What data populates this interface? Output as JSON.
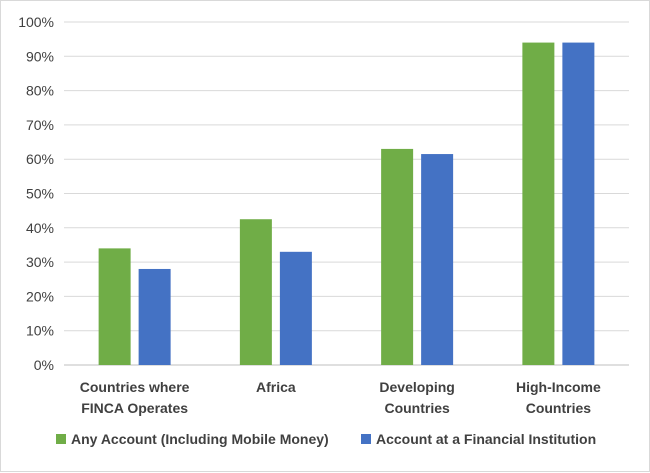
{
  "chart_data": {
    "type": "bar",
    "categories": [
      [
        "Countries where",
        "FINCA Operates"
      ],
      [
        "Africa"
      ],
      [
        "Developing",
        "Countries"
      ],
      [
        "High-Income",
        "Countries"
      ]
    ],
    "series": [
      {
        "name": "Any Account (Including Mobile Money)",
        "color": "#70ad47",
        "values": [
          34,
          42.5,
          63,
          94
        ]
      },
      {
        "name": "Account at a Financial Institution",
        "color": "#4472c4",
        "values": [
          28,
          33,
          61.5,
          94
        ]
      }
    ],
    "ylim": [
      0,
      100
    ],
    "yticks": [
      "0%",
      "10%",
      "20%",
      "30%",
      "40%",
      "50%",
      "60%",
      "70%",
      "80%",
      "90%",
      "100%"
    ],
    "grid": true,
    "legend_position": "bottom"
  }
}
